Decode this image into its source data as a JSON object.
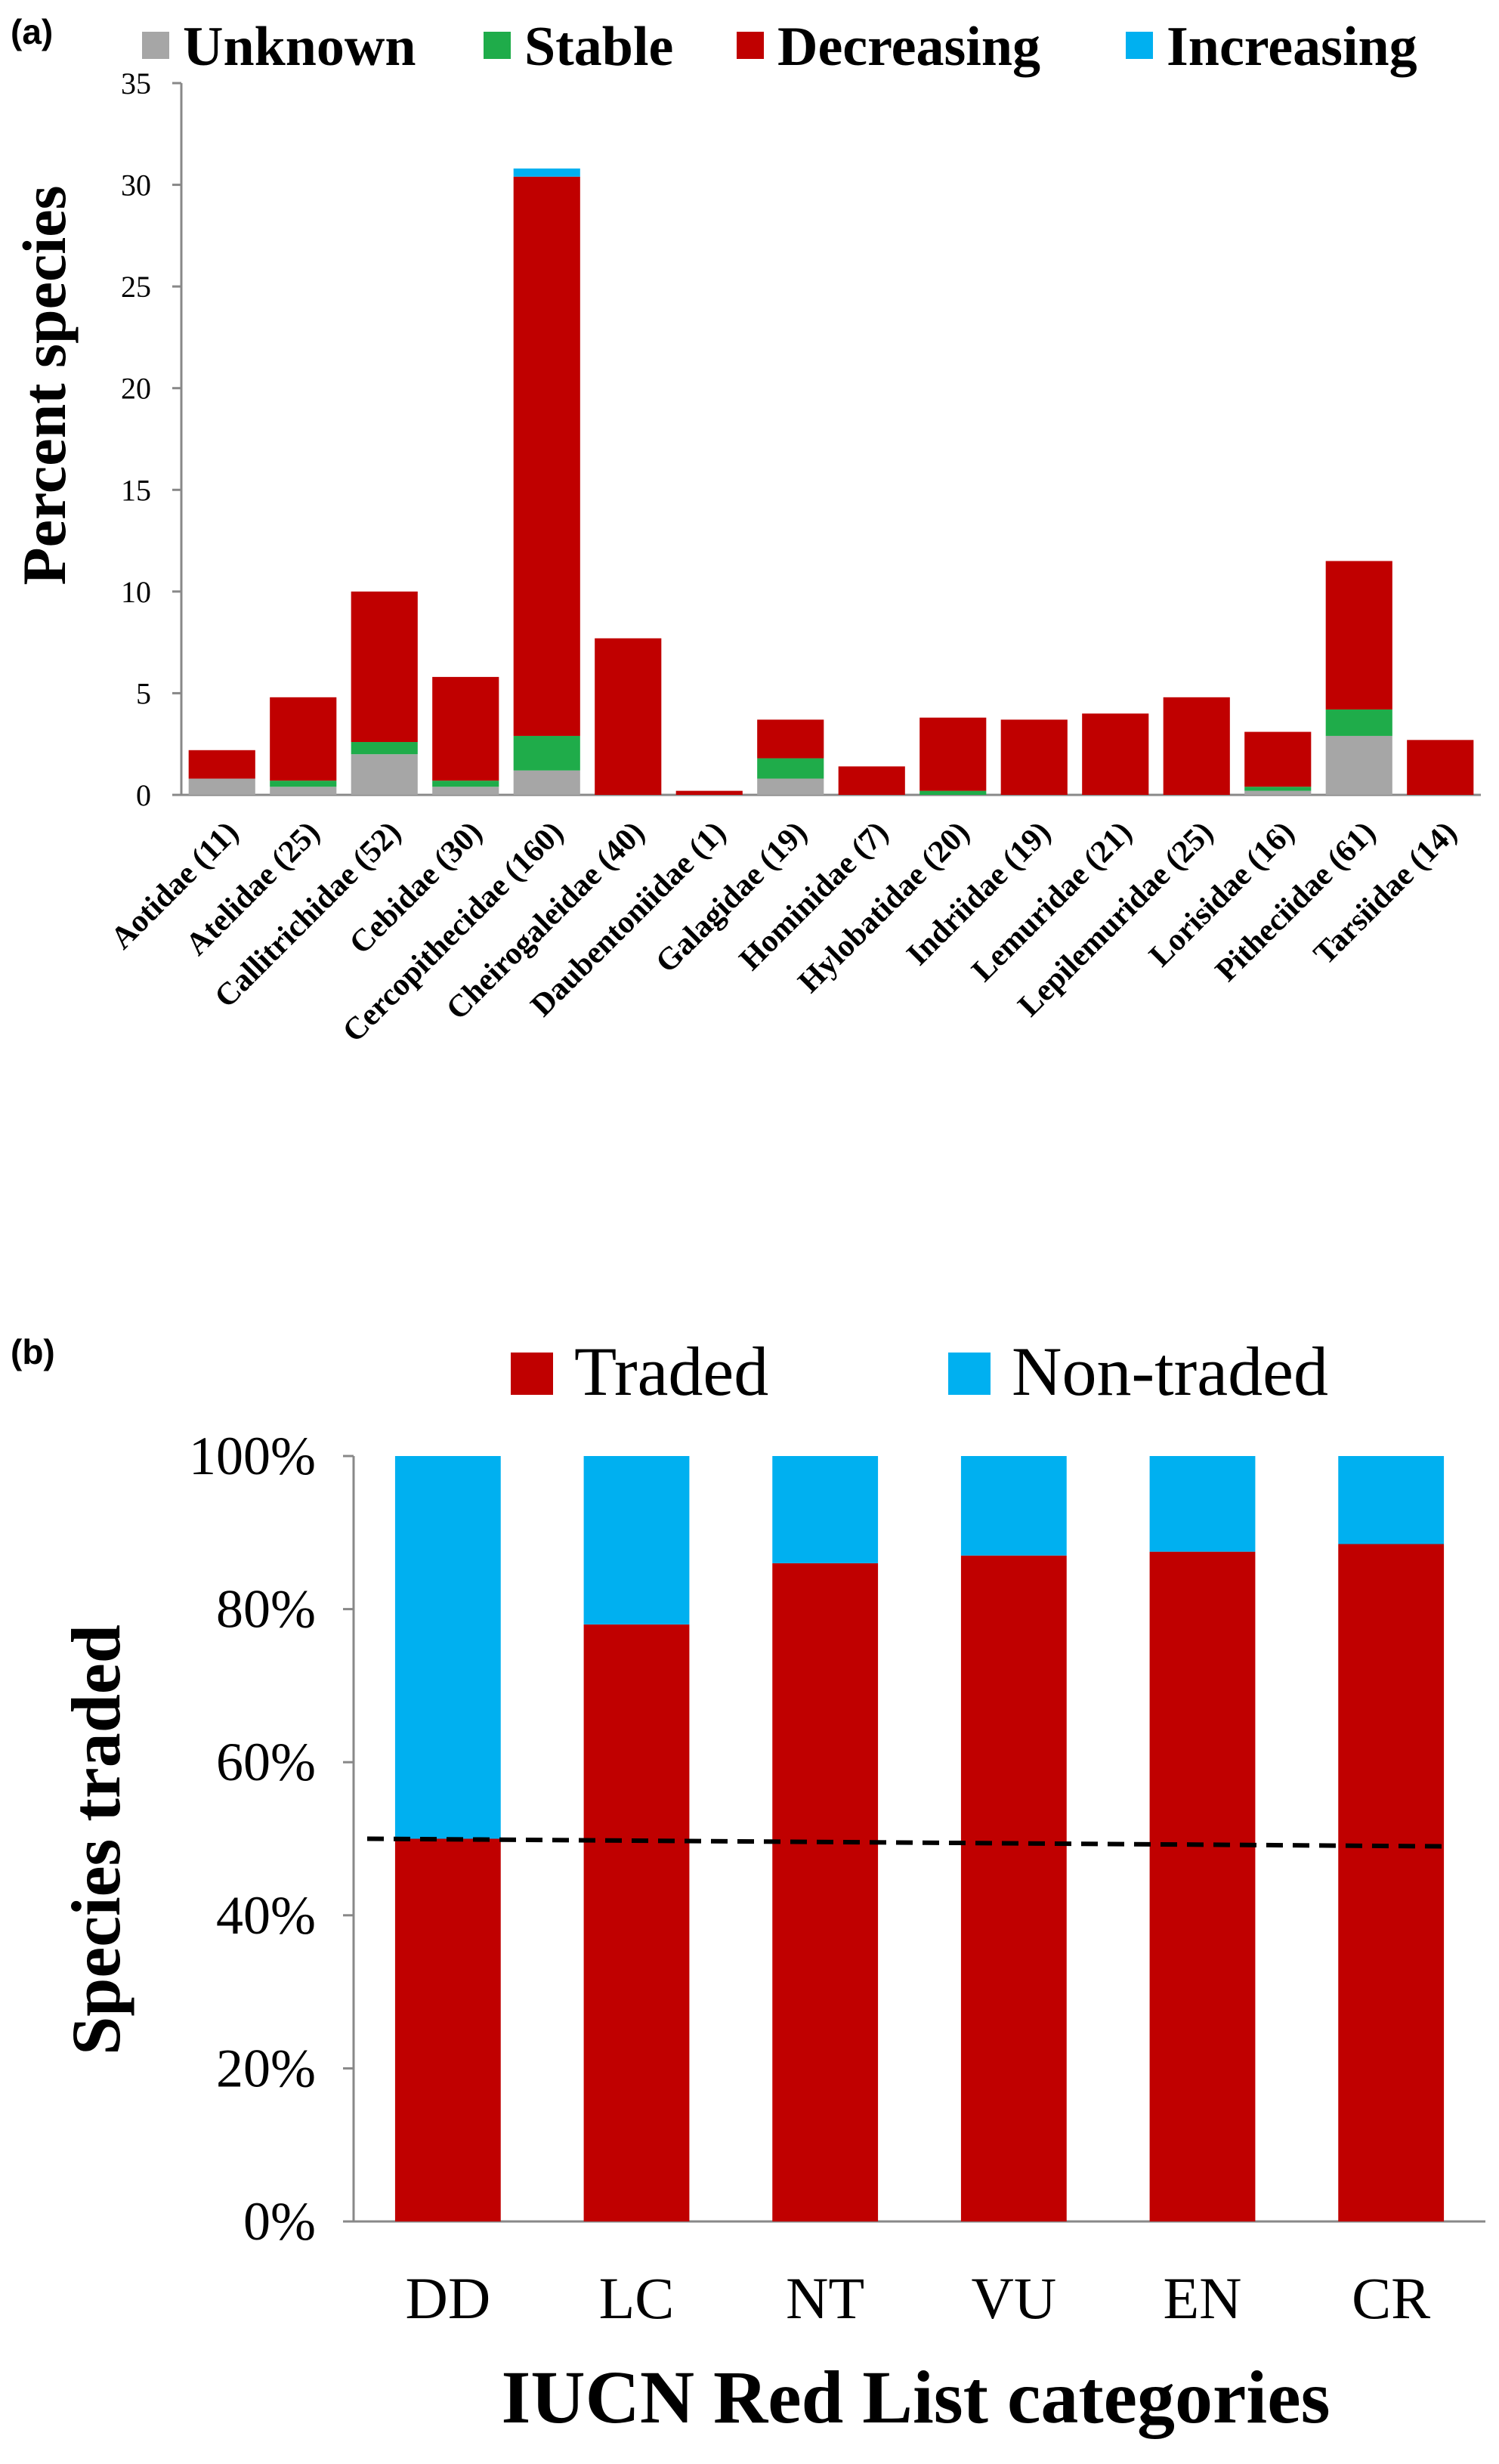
{
  "chart_data": [
    {
      "panel_label": "(a)",
      "type": "bar",
      "stacked": true,
      "ylabel": "Percent species",
      "xlabel": "",
      "ylim": [
        0,
        35
      ],
      "yticks": [
        0,
        5,
        10,
        15,
        20,
        25,
        30,
        35
      ],
      "grid": false,
      "legend_position": "top",
      "categories": [
        "Aotidae (11)",
        "Atelidae (25)",
        "Callitrichidae (52)",
        "Cebidae (30)",
        "Cercopithecidae (160)",
        "Cheirogaleidae (40)",
        "Daubentoniidae (1)",
        "Galagidae (19)",
        "Hominidae (7)",
        "Hylobatidae (20)",
        "Indriidae (19)",
        "Lemuridae (21)",
        "Lepilemuridae (25)",
        "Lorisidae (16)",
        "Pitheciidae (61)",
        "Tarsiidae (14)"
      ],
      "series": [
        {
          "name": "Unknown",
          "color": "#a6a6a6",
          "values": [
            0.8,
            0.4,
            2.0,
            0.4,
            1.2,
            0,
            0,
            0.8,
            0,
            0,
            0,
            0,
            0,
            0.2,
            2.9,
            0
          ]
        },
        {
          "name": "Stable",
          "color": "#1fac4a",
          "values": [
            0,
            0.3,
            0.6,
            0.3,
            1.7,
            0,
            0,
            1.0,
            0,
            0.2,
            0,
            0,
            0,
            0.2,
            1.3,
            0
          ]
        },
        {
          "name": "Decreasing",
          "color": "#c00000",
          "values": [
            1.4,
            4.1,
            7.4,
            5.1,
            27.5,
            7.7,
            0.2,
            1.9,
            1.4,
            3.6,
            3.7,
            4.0,
            4.8,
            2.7,
            7.3,
            2.7
          ]
        },
        {
          "name": "Increasing",
          "color": "#00b0f0",
          "values": [
            0,
            0,
            0,
            0,
            0.4,
            0,
            0,
            0,
            0,
            0,
            0,
            0,
            0,
            0,
            0,
            0
          ]
        }
      ]
    },
    {
      "panel_label": "(b)",
      "type": "bar",
      "stacked": true,
      "ylabel": "Species traded",
      "xlabel": "IUCN Red List categories",
      "ylim": [
        0,
        100
      ],
      "yticks": [
        "0%",
        "20%",
        "40%",
        "60%",
        "80%",
        "100%"
      ],
      "grid": false,
      "legend_position": "top",
      "categories": [
        "DD",
        "LC",
        "NT",
        "VU",
        "EN",
        "CR"
      ],
      "series": [
        {
          "name": "Traded",
          "color": "#c00000",
          "values": [
            50,
            78,
            86,
            87,
            87.5,
            88.5
          ]
        },
        {
          "name": "Non-traded",
          "color": "#00b0f0",
          "values": [
            50,
            22,
            14,
            13,
            12.5,
            11.5
          ]
        }
      ],
      "reference_line": {
        "style": "dashed",
        "y_start": 50,
        "y_end": 49
      }
    }
  ]
}
